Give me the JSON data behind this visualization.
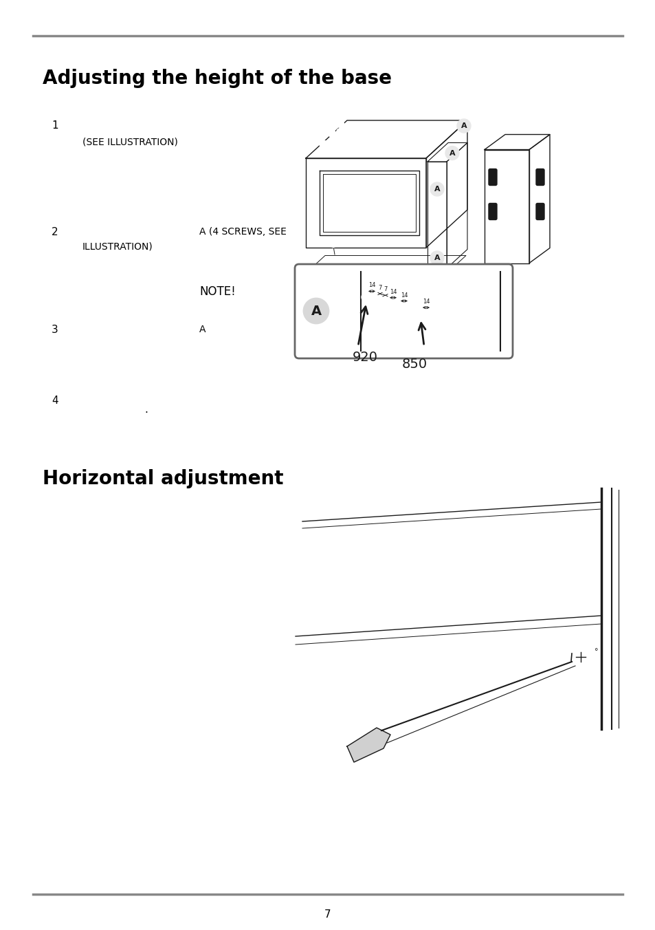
{
  "title1": "Adjusting the height of the base",
  "title2": "Horizontal adjustment",
  "step1_num": "1",
  "step1_sub": "(SEE ILLUSTRATION)",
  "step2_num": "2",
  "step2_a": "A (4 SCREWS, SEE",
  "step2_b": "ILLUSTRATION)",
  "note_text": "NOTE!",
  "step3_num": "3",
  "step3_a": "A",
  "step4_num": "4",
  "step4_dot": ".",
  "page_num": "7",
  "bg_color": "#ffffff",
  "text_color": "#000000",
  "rule_color": "#888888",
  "title_fontsize": 20,
  "body_fontsize": 11,
  "small_fontsize": 9
}
